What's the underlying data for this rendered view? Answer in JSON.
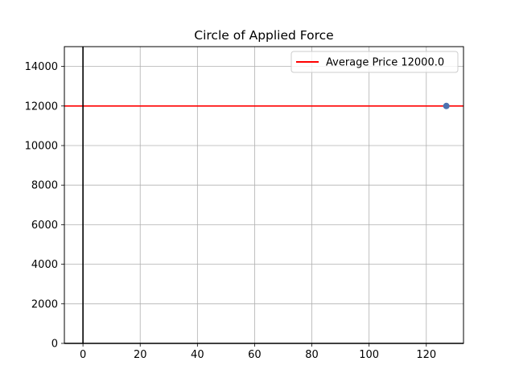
{
  "chart_data": {
    "type": "scatter",
    "title": "Circle of Applied Force",
    "xlabel": "",
    "ylabel": "",
    "xlim": [
      -6.5,
      133
    ],
    "ylim": [
      0,
      15000
    ],
    "xticks": [
      0,
      20,
      40,
      60,
      80,
      100,
      120
    ],
    "yticks": [
      0,
      2000,
      4000,
      6000,
      8000,
      10000,
      12000,
      14000
    ],
    "xtick_labels": [
      "0",
      "20",
      "40",
      "60",
      "80",
      "100",
      "120"
    ],
    "ytick_labels": [
      "0",
      "2000",
      "4000",
      "6000",
      "8000",
      "10000",
      "12000",
      "14000"
    ],
    "grid": true,
    "points": [
      {
        "x": 127,
        "y": 12000
      }
    ],
    "point_color": "#4c72b0",
    "reference_lines": [
      {
        "orientation": "horizontal",
        "value": 12000,
        "color": "#ff0000",
        "label": "Average Price 12000.0"
      },
      {
        "orientation": "vertical",
        "value": 0,
        "color": "#000000"
      }
    ],
    "legend": {
      "placement": "upper-right",
      "entries": [
        "Average Price 12000.0"
      ]
    }
  }
}
